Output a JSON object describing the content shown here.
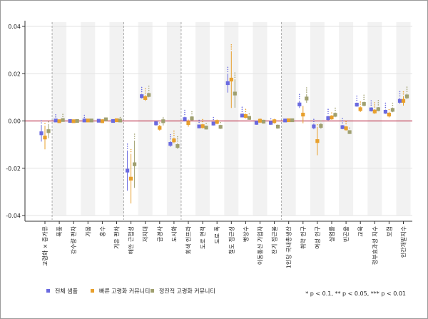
{
  "chart_data": {
    "type": "scatter",
    "subtype": "coefficient-plot-with-error-bars",
    "title": "",
    "xlabel": "",
    "ylabel": "",
    "ylim": [
      -0.04,
      0.04
    ],
    "yticks": [
      0.04,
      0.02,
      0.0,
      -0.02,
      -0.04
    ],
    "ytick_labels": [
      "0.04",
      "0.02",
      "0.00",
      "-0.02",
      "-0.04"
    ],
    "reference_line": 0,
    "reference_color": "#c0405a",
    "group_separators_after": [
      1,
      6,
      10,
      17
    ],
    "legend_position": "bottom-left",
    "categories": [
      "고령화 × 증가류",
      "폭풍",
      "강수량 편차",
      "가뭄",
      "홍수",
      "기온 편차",
      "해안 근접성",
      "저지대",
      "급경사",
      "도시화",
      "회색 인프라",
      "도로 면적",
      "도로 폭",
      "철도 접근성",
      "병상수",
      "이동통신 가입자",
      "전기 접근율",
      "1인당 국내총생산",
      "취약 인구",
      "여성 인구",
      "실업률",
      "빈곤율",
      "교육",
      "정부효과성 지수",
      "보험",
      "인간개발지수"
    ],
    "series": [
      {
        "name": "전체 샘플",
        "color": "#6a6ae0",
        "values": [
          -0.0052,
          0.0002,
          0.0,
          0.0002,
          0.0001,
          0.0,
          -0.021,
          0.0105,
          -0.001,
          -0.0097,
          0.0008,
          -0.0023,
          -0.0011,
          0.016,
          0.0023,
          -0.0008,
          -0.0008,
          0.0002,
          0.007,
          -0.0023,
          0.0012,
          -0.0026,
          0.0069,
          0.0049,
          0.0039,
          0.0085
        ],
        "ci": [
          0.0035,
          0.0006,
          0.0004,
          0.0004,
          0.0006,
          0.0004,
          0.0085,
          0.001,
          0.001,
          0.0012,
          0.001,
          0.0008,
          0.0008,
          0.004,
          0.0008,
          0.0008,
          0.0008,
          0.0005,
          0.0015,
          0.0012,
          0.001,
          0.0009,
          0.0009,
          0.0009,
          0.0009,
          0.0012
        ],
        "sig": [
          "**",
          "**",
          "",
          "**",
          "",
          "",
          "***",
          "***",
          "",
          "***",
          "***",
          "**",
          "**",
          "***",
          "***",
          "",
          "*",
          "",
          "***",
          "**",
          "***",
          "***",
          "***",
          "***",
          "***",
          "***"
        ]
      },
      {
        "name": "빠른 고령화 커뮤니티",
        "color": "#e8a02c",
        "values": [
          -0.007,
          -0.0001,
          -0.0001,
          0.0002,
          -0.0001,
          0.0003,
          -0.0244,
          0.0097,
          -0.0029,
          -0.0082,
          -0.0009,
          -0.0022,
          -0.0004,
          0.0175,
          0.0021,
          0.0001,
          -0.0001,
          0.0003,
          0.0027,
          -0.0085,
          0.0015,
          -0.0031,
          0.005,
          0.004,
          0.0027,
          0.0085
        ],
        "ci": [
          0.005,
          0.0006,
          0.0005,
          0.0005,
          0.0008,
          0.0005,
          0.0105,
          0.0012,
          0.0012,
          0.0012,
          0.0015,
          0.001,
          0.001,
          0.012,
          0.001,
          0.001,
          0.001,
          0.0006,
          0.0037,
          0.006,
          0.001,
          0.001,
          0.0012,
          0.001,
          0.0012,
          0.002
        ],
        "sig": [
          "*",
          "",
          "",
          "",
          "",
          "",
          "**",
          "***",
          "*",
          "***",
          "",
          "**",
          "",
          "***",
          "**",
          "",
          "",
          "",
          "",
          "*",
          "*",
          "**",
          "**",
          "***",
          "*",
          "**"
        ]
      },
      {
        "name": "정진적 고령화 커뮤니티",
        "color": "#a0a070",
        "values": [
          -0.0043,
          0.0004,
          0.0,
          0.0002,
          0.0007,
          0.0002,
          -0.0183,
          0.011,
          -0.0001,
          -0.0106,
          0.0011,
          -0.0028,
          -0.0025,
          0.0116,
          0.0013,
          -0.0003,
          -0.0024,
          0.0003,
          0.0095,
          -0.0021,
          0.0026,
          -0.0047,
          0.0072,
          0.005,
          0.0047,
          0.0104
        ],
        "ci": [
          0.003,
          0.0006,
          0.0004,
          0.0004,
          0.0008,
          0.0004,
          0.01,
          0.001,
          0.0018,
          0.0012,
          0.001,
          0.0008,
          0.0009,
          0.006,
          0.0008,
          0.0008,
          0.0009,
          0.0005,
          0.0018,
          0.0012,
          0.001,
          0.0008,
          0.001,
          0.0009,
          0.001,
          0.0012
        ],
        "sig": [
          "*",
          "**",
          "",
          "",
          "",
          "*",
          "***",
          "***",
          "",
          "***",
          "**",
          "*",
          "*",
          "***",
          "*",
          "",
          "",
          "",
          "***",
          "*",
          "**",
          "*",
          "***",
          "***",
          "**",
          "***"
        ]
      }
    ],
    "footnote": "* p < 0.1, ** p < 0.05, *** p < 0.01"
  }
}
